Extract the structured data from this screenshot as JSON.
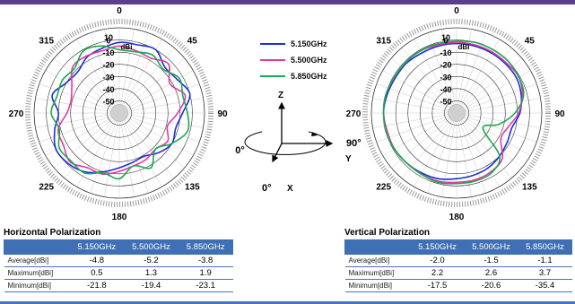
{
  "chart_data": [
    {
      "type": "polar",
      "title": "Horizontal Polarization",
      "unit_label": "dBi",
      "ring_labels": [
        "10",
        "0",
        "-10",
        "-20",
        "-30",
        "-40",
        "-50"
      ],
      "angle_labels": [
        "0",
        "45",
        "90",
        "135",
        "180",
        "225",
        "270",
        "315"
      ],
      "rlim": [
        -60,
        10
      ],
      "series": [
        {
          "name": "5.150GHz",
          "color": "#1f2fd6",
          "values": [
            -2,
            -2,
            0,
            -7,
            -5,
            0,
            -8,
            -12,
            -10,
            -14,
            -19,
            -18,
            -15,
            -10,
            -4,
            -1,
            0,
            -5,
            -10,
            -3,
            -10,
            -12,
            -7,
            -5
          ]
        },
        {
          "name": "5.500GHz",
          "color": "#e23aa2",
          "values": [
            -5,
            -7,
            -8,
            -3,
            -12,
            -4,
            -12,
            -19,
            -14,
            -18,
            -16,
            -15,
            -12,
            -8,
            -8,
            -3,
            -7,
            -8,
            -17,
            -19,
            -15,
            -6,
            -6,
            -7
          ]
        },
        {
          "name": "5.850GHz",
          "color": "#1ea84e",
          "values": [
            -8,
            -8,
            -5,
            -9,
            -3,
            -6,
            -4,
            -2,
            -10,
            -18,
            -8,
            -15,
            -6,
            -9,
            -3,
            -4,
            -3,
            -9,
            -4,
            -7,
            -6,
            -8,
            -1,
            -3
          ]
        }
      ]
    },
    {
      "type": "polar",
      "title": "Vertical Polarization",
      "unit_label": "dBi",
      "ring_labels": [
        "10",
        "0",
        "-10",
        "-20",
        "-30",
        "-40",
        "-50"
      ],
      "angle_labels": [
        "0",
        "45",
        "90",
        "135",
        "180",
        "225",
        "270",
        "315"
      ],
      "rlim": [
        -60,
        10
      ],
      "series": [
        {
          "name": "5.150GHz",
          "color": "#1f2fd6",
          "values": [
            -3,
            -3,
            -3,
            -3,
            -3,
            -5,
            -8,
            -13,
            -12,
            -10,
            -8,
            -7,
            -6,
            -4,
            -3,
            -2,
            -1,
            -1,
            0,
            -1,
            -2,
            -2,
            -3,
            -3
          ]
        },
        {
          "name": "5.500GHz",
          "color": "#e23aa2",
          "values": [
            -2,
            -2,
            -2,
            -2,
            -1,
            -4,
            -9,
            -16,
            -18,
            -7,
            -4,
            -3,
            -3,
            -2,
            -2,
            -2,
            -1,
            -1,
            0,
            0,
            -1,
            -1,
            -1,
            -2
          ]
        },
        {
          "name": "5.850GHz",
          "color": "#1ea84e",
          "values": [
            -1,
            0,
            0,
            0,
            -1,
            -3,
            -12,
            -24,
            -35,
            -10,
            -3,
            -2,
            -2,
            -1,
            -2,
            -2,
            -1,
            0,
            0,
            0,
            -1,
            -1,
            -1,
            -1
          ]
        }
      ]
    }
  ],
  "legend": [
    {
      "label": "5.150GHz",
      "color": "#1f2fd6"
    },
    {
      "label": "5.500GHz",
      "color": "#e23aa2"
    },
    {
      "label": "5.850GHz",
      "color": "#1ea84e"
    }
  ],
  "axes_figure": {
    "z": "Z",
    "y": "Y",
    "x": "X",
    "angle_90": "90°",
    "angle_270": "270°",
    "angle_0": "0°"
  },
  "tables": [
    {
      "title": "Horizontal Polarization",
      "headers": [
        "5.150GHz",
        "5.500GHz",
        "5.850GHz"
      ],
      "rows": [
        {
          "label": "Average[dBi]",
          "values": [
            "-4.8",
            "-5.2",
            "-3.8"
          ]
        },
        {
          "label": "Maximum[dBi]",
          "values": [
            "0.5",
            "1.3",
            "1.9"
          ]
        },
        {
          "label": "Minimum[dBi]",
          "values": [
            "-21.8",
            "-19.4",
            "-23.1"
          ]
        }
      ]
    },
    {
      "title": "Vertical Polarization",
      "headers": [
        "5.150GHz",
        "5.500GHz",
        "5.850GHz"
      ],
      "rows": [
        {
          "label": "Average[dBi]",
          "values": [
            "-2.0",
            "-1.5",
            "-1.1"
          ]
        },
        {
          "label": "Maximum[dBi]",
          "values": [
            "2.2",
            "2.6",
            "3.7"
          ]
        },
        {
          "label": "Minimum[dBi]",
          "values": [
            "-17.5",
            "-20.6",
            "-35.4"
          ]
        }
      ]
    }
  ]
}
